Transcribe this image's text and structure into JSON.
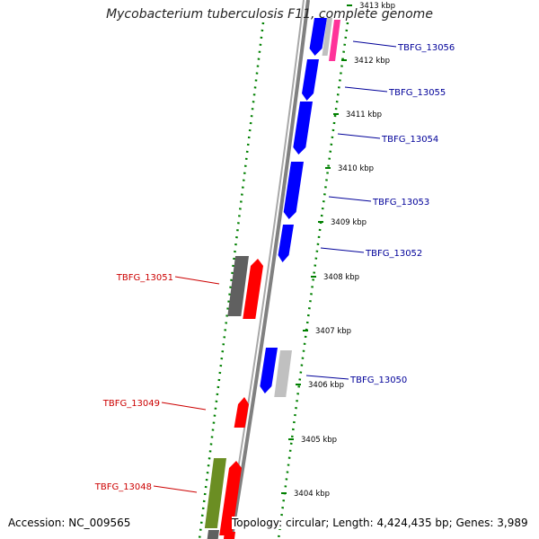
{
  "title": "Mycobacterium tuberculosis F11, complete genome",
  "footer": {
    "accession": "Accession: NC_009565",
    "info": "Topology: circular; Length: 4,424,435 bp; Genes: 3,989"
  },
  "colors": {
    "cds_forward": "#0000ff",
    "cds_reverse": "#ff0000",
    "gene_gray": "#606060",
    "gene_light": "#c0c0c0",
    "gene_pink": "#ff3399",
    "gene_olive": "#6b8e23",
    "backbone": "#808080",
    "tick_green": "#008000",
    "label_forward": "#000099",
    "label_reverse": "#cc0000"
  },
  "ticks": [
    {
      "label": "3413 kbp"
    },
    {
      "label": "3412 kbp"
    },
    {
      "label": "3411 kbp"
    },
    {
      "label": "3410 kbp"
    },
    {
      "label": "3409 kbp"
    },
    {
      "label": "3408 kbp"
    },
    {
      "label": "3407 kbp"
    },
    {
      "label": "3406 kbp"
    },
    {
      "label": "3405 kbp"
    },
    {
      "label": "3404 kbp"
    }
  ],
  "gene_labels": [
    {
      "text": "TBFG_13056",
      "strand": "forward"
    },
    {
      "text": "TBFG_13055",
      "strand": "forward"
    },
    {
      "text": "TBFG_13054",
      "strand": "forward"
    },
    {
      "text": "TBFG_13053",
      "strand": "forward"
    },
    {
      "text": "TBFG_13052",
      "strand": "forward"
    },
    {
      "text": "TBFG_13051",
      "strand": "reverse"
    },
    {
      "text": "TBFG_13050",
      "strand": "forward"
    },
    {
      "text": "TBFG_13049",
      "strand": "reverse"
    },
    {
      "text": "TBFG_13048",
      "strand": "reverse"
    }
  ]
}
